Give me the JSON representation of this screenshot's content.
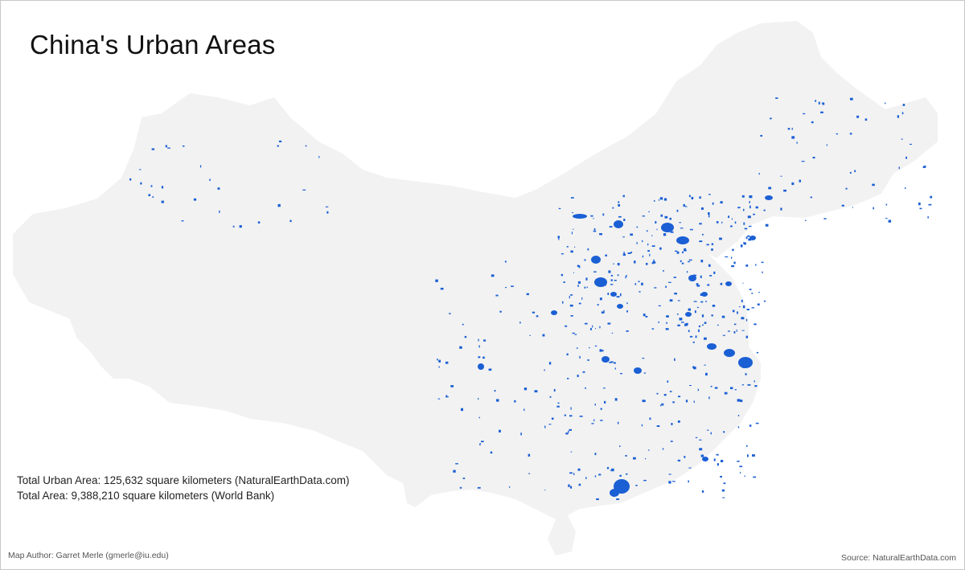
{
  "map": {
    "title": "China's Urban Areas",
    "stats": {
      "urban_area": "Total Urban Area: 125,632 square kilometers (NaturalEarthData.com)",
      "total_area": "Total Area: 9,388,210 square kilometers (World Bank)"
    },
    "author": "Map Author: Garret Merle (gmerle@iu.edu)",
    "source": "Source: NaturalEarthData.com",
    "colors": {
      "land": "#f2f2f2",
      "urban": "#1a5fd4",
      "background": "#ffffff"
    }
  }
}
